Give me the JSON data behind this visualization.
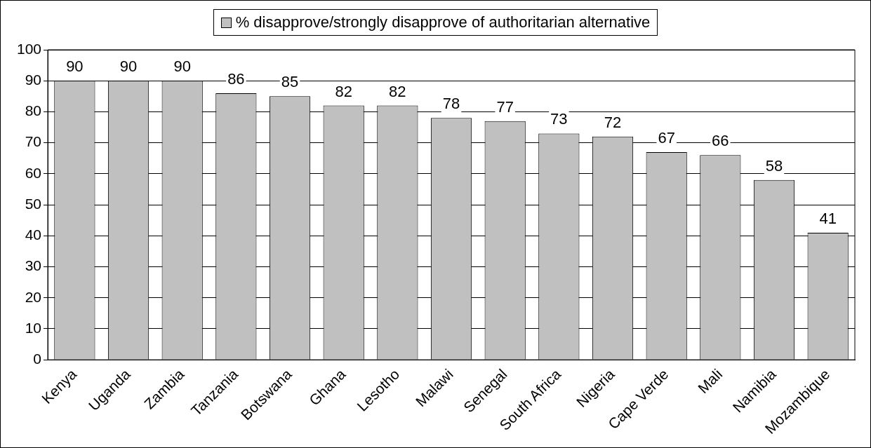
{
  "chart_data": {
    "type": "bar",
    "categories": [
      "Kenya",
      "Uganda",
      "Zambia",
      "Tanzania",
      "Botswana",
      "Ghana",
      "Lesotho",
      "Malawi",
      "Senegal",
      "South Africa",
      "Nigeria",
      "Cape Verde",
      "Mali",
      "Namibia",
      "Mozambique"
    ],
    "series": [
      {
        "name": "% disapprove/strongly disapprove of authoritarian alternative",
        "color": "#c0c0c0",
        "values": [
          90,
          90,
          90,
          86,
          85,
          82,
          82,
          78,
          77,
          73,
          72,
          67,
          66,
          58,
          41
        ]
      }
    ],
    "ylim": [
      0,
      100
    ],
    "yticks": [
      0,
      10,
      20,
      30,
      40,
      50,
      60,
      70,
      80,
      90,
      100
    ],
    "grid": "y",
    "legend": "top",
    "data_labels": true
  }
}
